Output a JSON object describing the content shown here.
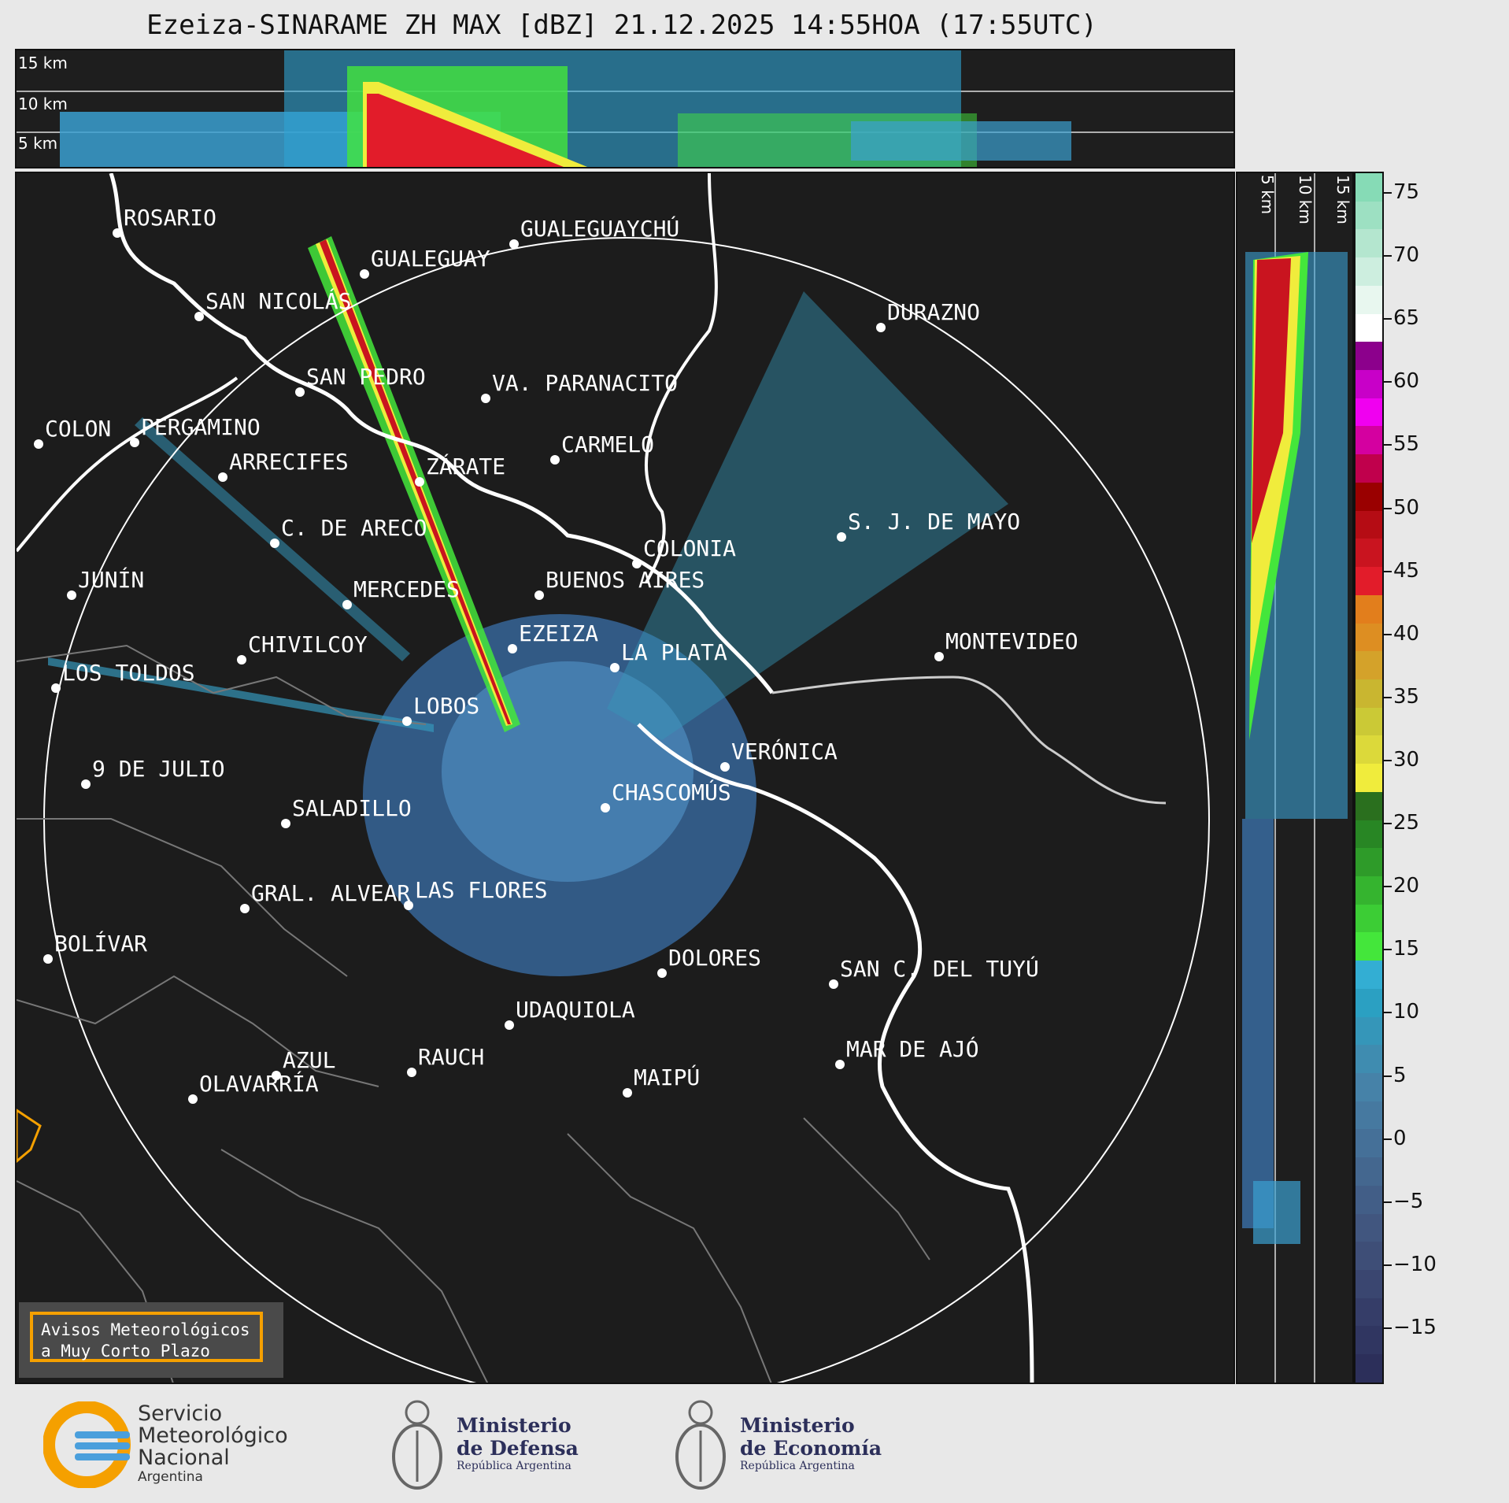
{
  "title": "Ezeiza-SINARAME ZH MAX [dBZ] 21.12.2025 14:55HOA (17:55UTC)",
  "top_panel": {
    "height_labels": [
      "15 km",
      "10 km",
      "5 km"
    ]
  },
  "side_panel": {
    "height_labels": [
      "5 km",
      "10 km",
      "15 km"
    ]
  },
  "colorbar": {
    "ticks": [
      "75",
      "70",
      "65",
      "60",
      "55",
      "50",
      "45",
      "40",
      "35",
      "30",
      "25",
      "20",
      "15",
      "10",
      "5",
      "0",
      "−5",
      "−10",
      "−15"
    ],
    "colors": [
      "#2c2f5a",
      "#303661",
      "#353d68",
      "#3a4670",
      "#3e4e77",
      "#41567f",
      "#425e87",
      "#44678f",
      "#457098",
      "#4679a0",
      "#4682a8",
      "#3f8cb0",
      "#3596b9",
      "#2ba0c2",
      "#33aed3",
      "#44e63b",
      "#3ccd35",
      "#35b42f",
      "#2e9b29",
      "#288624",
      "#2a6f1e",
      "#f0ec3c",
      "#dcd93a",
      "#cbc936",
      "#c9b630",
      "#d4a22a",
      "#dd8e22",
      "#e27e1c",
      "#e21c2a",
      "#c9141f",
      "#b50c14",
      "#9a0000",
      "#c0004c",
      "#d400a0",
      "#f000f0",
      "#c800c8",
      "#8c008c",
      "#ffffff",
      "#e8f7ef",
      "#cdeedf",
      "#b4e6cf",
      "#9de0c2",
      "#86dbb6"
    ]
  },
  "map": {
    "radar_center": "EZEIZA",
    "cities": [
      {
        "name": "ROSARIO"
      },
      {
        "name": "GUALEGUAYCHÚ"
      },
      {
        "name": "GUALEGUAY"
      },
      {
        "name": "SAN NICOLÁS"
      },
      {
        "name": "DURAZNO"
      },
      {
        "name": "SAN PEDRO"
      },
      {
        "name": "VA. PARANACITO"
      },
      {
        "name": "COLON"
      },
      {
        "name": "PERGAMINO"
      },
      {
        "name": "CARMELO"
      },
      {
        "name": "ARRECIFES"
      },
      {
        "name": "ZÁRATE"
      },
      {
        "name": "C. DE ARECO"
      },
      {
        "name": "S. J. DE MAYO"
      },
      {
        "name": "COLONIA"
      },
      {
        "name": "JUNÍN"
      },
      {
        "name": "BUENOS AIRES"
      },
      {
        "name": "MERCEDES"
      },
      {
        "name": "EZEIZA"
      },
      {
        "name": "MONTEVIDEO"
      },
      {
        "name": "CHIVILCOY"
      },
      {
        "name": "LA PLATA"
      },
      {
        "name": "LOS TOLDOS"
      },
      {
        "name": "LOBOS"
      },
      {
        "name": "VERÓNICA"
      },
      {
        "name": "9 DE JULIO"
      },
      {
        "name": "CHASCOMÚS"
      },
      {
        "name": "SALADILLO"
      },
      {
        "name": "GRAL. ALVEAR"
      },
      {
        "name": "LAS FLORES"
      },
      {
        "name": "BOLÍVAR"
      },
      {
        "name": "DOLORES"
      },
      {
        "name": "SAN C. DEL TUYÚ"
      },
      {
        "name": "UDAQUIOLA"
      },
      {
        "name": "MAR DE AJÓ"
      },
      {
        "name": "AZUL"
      },
      {
        "name": "RAUCH"
      },
      {
        "name": "MAIPÚ"
      },
      {
        "name": "OLAVARRÍA"
      }
    ]
  },
  "avisos": {
    "line1": "Avisos Meteorológicos",
    "line2": "a Muy Corto Plazo"
  },
  "logos": {
    "smn": {
      "line1": "Servicio",
      "line2": "Meteorológico",
      "line3": "Nacional",
      "line4": "Argentina"
    },
    "defensa": {
      "line1": "Ministerio",
      "line2": "de Defensa",
      "line3": "República Argentina"
    },
    "economia": {
      "line1": "Ministerio",
      "line2": "de Economía",
      "line3": "República Argentina"
    }
  }
}
